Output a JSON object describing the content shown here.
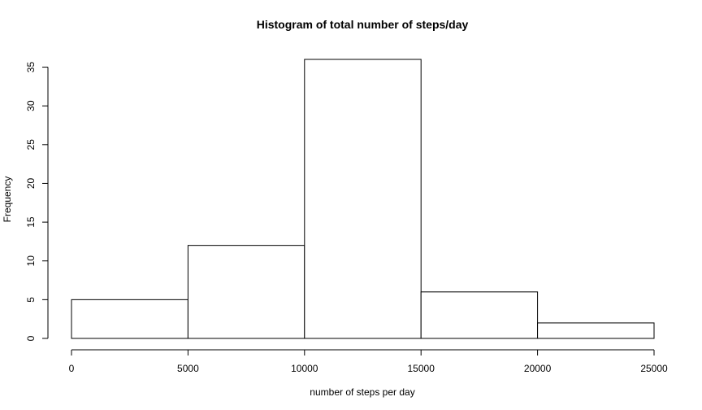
{
  "chart_data": {
    "type": "bar",
    "title": "Histogram of total number of steps/day",
    "xlabel": "number of steps per day",
    "ylabel": "Frequency",
    "bins": [
      {
        "from": 0,
        "to": 5000,
        "count": 5
      },
      {
        "from": 5000,
        "to": 10000,
        "count": 12
      },
      {
        "from": 10000,
        "to": 15000,
        "count": 36
      },
      {
        "from": 15000,
        "to": 20000,
        "count": 6
      },
      {
        "from": 20000,
        "to": 25000,
        "count": 2
      }
    ],
    "xlim": [
      0,
      25000
    ],
    "ylim": [
      0,
      36
    ],
    "x_ticks": [
      0,
      5000,
      10000,
      15000,
      20000,
      25000
    ],
    "y_ticks": [
      0,
      5,
      10,
      15,
      20,
      25,
      30,
      35
    ],
    "grid": false,
    "colors": {
      "bar_fill": "#ffffff",
      "bar_stroke": "#000000"
    }
  }
}
